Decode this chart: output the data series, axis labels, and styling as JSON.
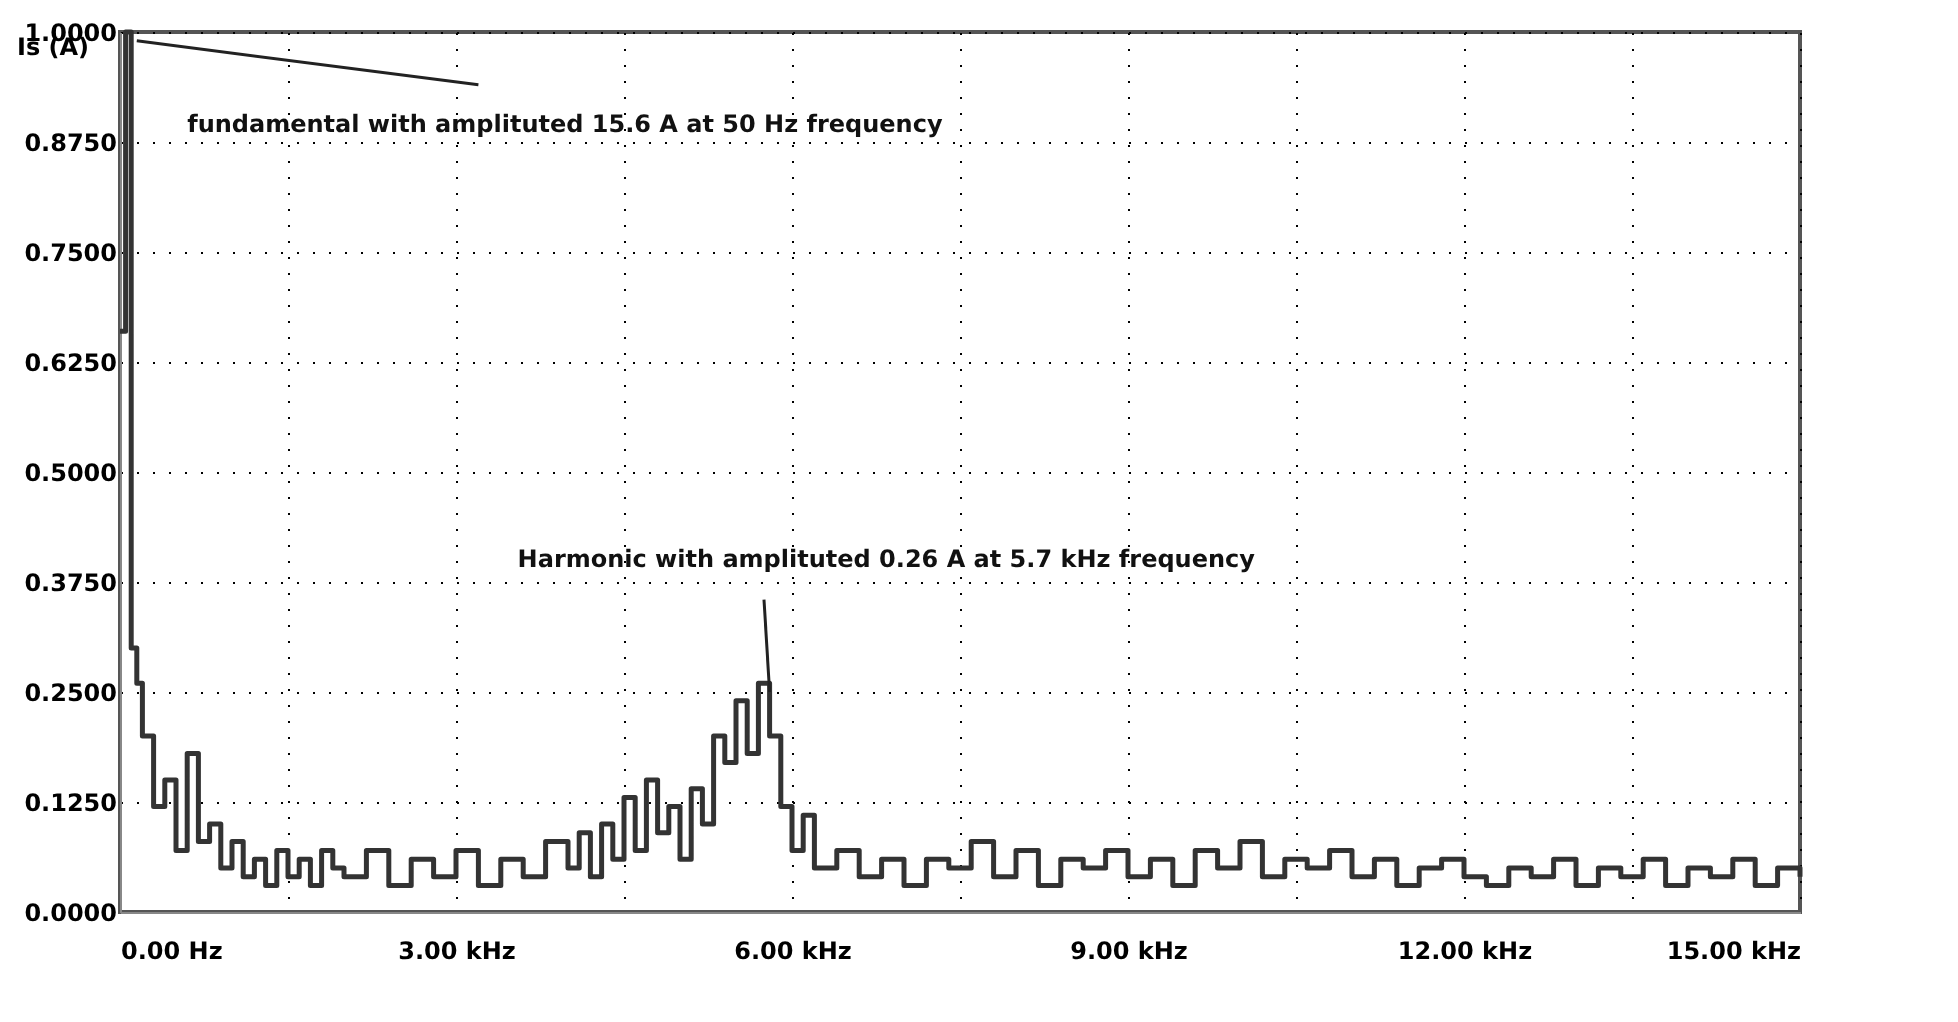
{
  "chart_data": {
    "type": "step",
    "ylabel": "Is (A)",
    "x": [
      0,
      0.05,
      0.1,
      0.15,
      0.2,
      0.3,
      0.4,
      0.5,
      0.6,
      0.7,
      0.8,
      0.9,
      1.0,
      1.1,
      1.2,
      1.3,
      1.4,
      1.5,
      1.6,
      1.7,
      1.8,
      1.9,
      2.0,
      2.2,
      2.4,
      2.6,
      2.8,
      3.0,
      3.2,
      3.4,
      3.6,
      3.8,
      4.0,
      4.1,
      4.2,
      4.3,
      4.4,
      4.5,
      4.6,
      4.7,
      4.8,
      4.9,
      5.0,
      5.1,
      5.2,
      5.3,
      5.4,
      5.5,
      5.6,
      5.7,
      5.8,
      5.9,
      6.0,
      6.1,
      6.2,
      6.4,
      6.6,
      6.8,
      7.0,
      7.2,
      7.4,
      7.6,
      7.8,
      8.0,
      8.2,
      8.4,
      8.6,
      8.8,
      9.0,
      9.2,
      9.4,
      9.6,
      9.8,
      10.0,
      10.2,
      10.4,
      10.6,
      10.8,
      11.0,
      11.2,
      11.4,
      11.6,
      11.8,
      12.0,
      12.2,
      12.4,
      12.6,
      12.8,
      13.0,
      13.2,
      13.4,
      13.6,
      13.8,
      14.0,
      14.2,
      14.4,
      14.6,
      14.8,
      15.0
    ],
    "series": [
      {
        "color": "#333333",
        "values": [
          0.66,
          1.0,
          0.3,
          0.26,
          0.2,
          0.12,
          0.15,
          0.07,
          0.18,
          0.08,
          0.1,
          0.05,
          0.08,
          0.04,
          0.06,
          0.03,
          0.07,
          0.04,
          0.06,
          0.03,
          0.07,
          0.05,
          0.04,
          0.07,
          0.03,
          0.06,
          0.04,
          0.07,
          0.03,
          0.06,
          0.04,
          0.08,
          0.05,
          0.09,
          0.04,
          0.1,
          0.06,
          0.13,
          0.07,
          0.15,
          0.09,
          0.12,
          0.06,
          0.14,
          0.1,
          0.2,
          0.17,
          0.24,
          0.18,
          0.26,
          0.2,
          0.12,
          0.07,
          0.11,
          0.05,
          0.07,
          0.04,
          0.06,
          0.03,
          0.06,
          0.05,
          0.08,
          0.04,
          0.07,
          0.03,
          0.06,
          0.05,
          0.07,
          0.04,
          0.06,
          0.03,
          0.07,
          0.05,
          0.08,
          0.04,
          0.06,
          0.05,
          0.07,
          0.04,
          0.06,
          0.03,
          0.05,
          0.06,
          0.04,
          0.03,
          0.05,
          0.04,
          0.06,
          0.03,
          0.05,
          0.04,
          0.06,
          0.03,
          0.05,
          0.04,
          0.06,
          0.03,
          0.05,
          0.04
        ]
      }
    ],
    "xlim": [
      0,
      15
    ],
    "xticks": [
      {
        "value": 0,
        "label": "0.00 Hz"
      },
      {
        "value": 1.5,
        "label": null
      },
      {
        "value": 3,
        "label": "3.00 kHz"
      },
      {
        "value": 4.5,
        "label": null
      },
      {
        "value": 6,
        "label": "6.00 kHz"
      },
      {
        "value": 7.5,
        "label": null
      },
      {
        "value": 9,
        "label": "9.00 kHz"
      },
      {
        "value": 10.5,
        "label": null
      },
      {
        "value": 12,
        "label": "12.00 kHz"
      },
      {
        "value": 13.5,
        "label": null
      },
      {
        "value": 15,
        "label": "15.00 kHz"
      }
    ],
    "ylim": [
      0,
      1
    ],
    "yticks": [
      {
        "value": 0,
        "label": "0.0000"
      },
      {
        "value": 0.125,
        "label": "0.1250"
      },
      {
        "value": 0.25,
        "label": "0.2500"
      },
      {
        "value": 0.375,
        "label": "0.3750"
      },
      {
        "value": 0.5,
        "label": "0.5000"
      },
      {
        "value": 0.625,
        "label": "0.6250"
      },
      {
        "value": 0.75,
        "label": "0.7500"
      },
      {
        "value": 0.875,
        "label": "0.8750"
      },
      {
        "value": 1,
        "label": "1.0000"
      }
    ],
    "grid": true,
    "line_style": "solid",
    "marker": "none",
    "annotations": [
      {
        "text": "fundamental with amplituted 15.6 A at 50 Hz frequency",
        "x": 0.05,
        "y": 1.0
      },
      {
        "text": "Harmonic with amplituted 0.26 A at 5.7 kHz frequency",
        "x": 5.7,
        "y": 0.26
      }
    ]
  }
}
